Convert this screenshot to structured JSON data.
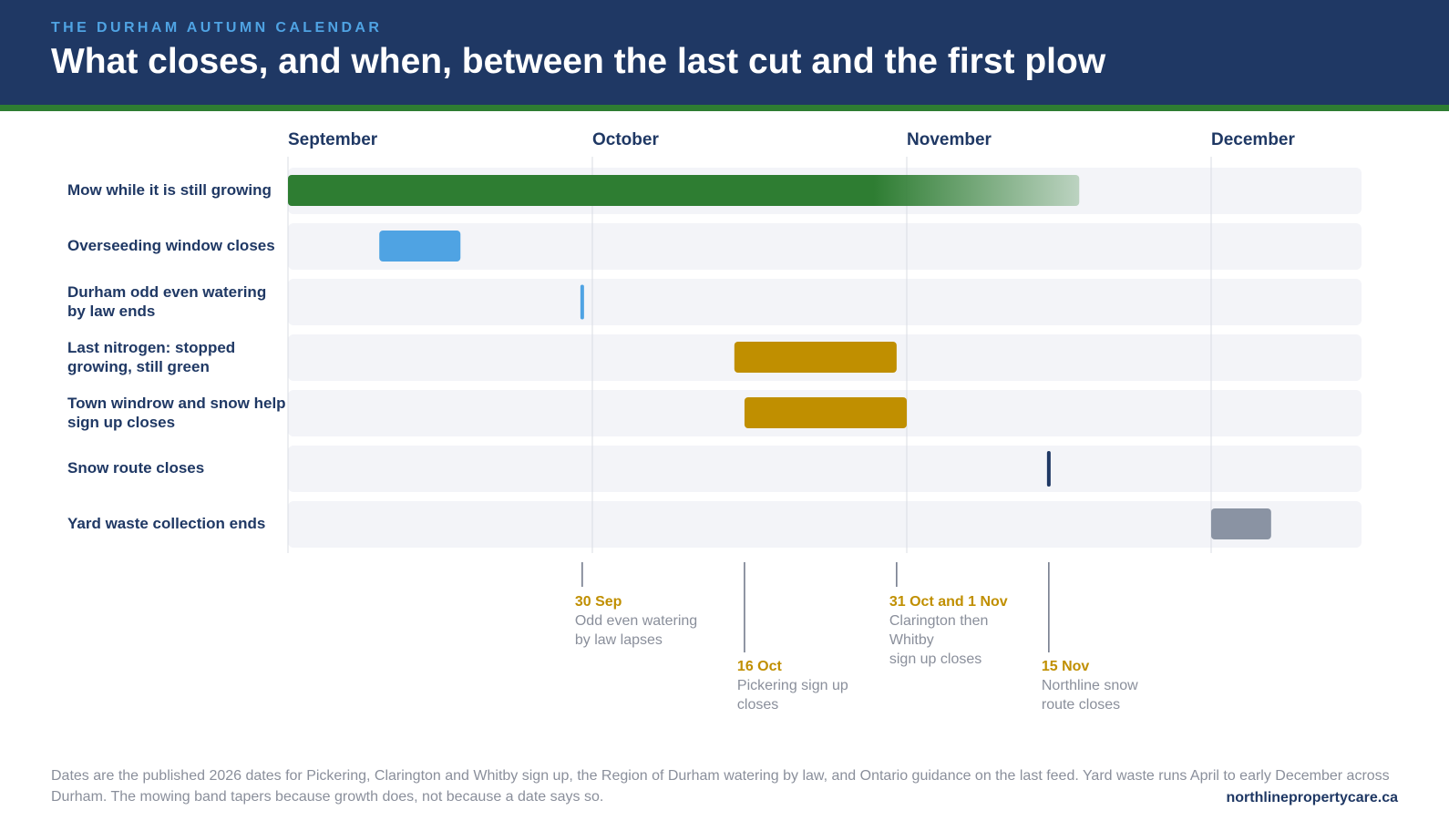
{
  "header": {
    "eyebrow": "THE DURHAM AUTUMN CALENDAR",
    "title": "What closes, and when, between the last cut and the first plow"
  },
  "colors": {
    "navy": "#1f3864",
    "green": "#2e7d32",
    "blue": "#4fa3e3",
    "gold": "#c08f00",
    "grey": "#8a93a3",
    "track": "#f3f4f8"
  },
  "chart_data": {
    "type": "gantt",
    "year": 2026,
    "months": [
      "September",
      "October",
      "November",
      "December"
    ],
    "x_range": [
      "2026-09-01",
      "2026-12-31"
    ],
    "rows": [
      {
        "label": "Mow while it is still growing",
        "start": "2026-09-01",
        "end": "2026-11-18",
        "color": "#2e7d32",
        "fade": true
      },
      {
        "label": "Overseeding window closes",
        "start": "2026-09-10",
        "end": "2026-09-18",
        "color": "#4fa3e3"
      },
      {
        "label": "Durham odd even watering by law ends",
        "start": "2026-09-30",
        "end": "2026-09-30",
        "color": "#4fa3e3",
        "marker": true
      },
      {
        "label": "Last nitrogen: stopped growing, still green",
        "start": "2026-10-15",
        "end": "2026-10-31",
        "color": "#c08f00"
      },
      {
        "label": "Town windrow and snow help sign up closes",
        "start": "2026-10-16",
        "end": "2026-11-01",
        "color": "#c08f00"
      },
      {
        "label": "Snow route closes",
        "start": "2026-11-15",
        "end": "2026-11-15",
        "color": "#1f3864",
        "marker": true
      },
      {
        "label": "Yard waste collection ends",
        "start": "2026-12-01",
        "end": "2026-12-07",
        "color": "#8a93a3"
      }
    ],
    "annotations": [
      {
        "date": "2026-09-30",
        "title": "30 Sep",
        "text": [
          "Odd even watering",
          "by law lapses"
        ],
        "tier": 1
      },
      {
        "date": "2026-10-16",
        "title": "16 Oct",
        "text": [
          "Pickering sign up",
          "closes"
        ],
        "tier": 2
      },
      {
        "date": "2026-10-31",
        "title": "31 Oct and 1 Nov",
        "text": [
          "Clarington then Whitby",
          "sign up closes"
        ],
        "tier": 1
      },
      {
        "date": "2026-11-15",
        "title": "15 Nov",
        "text": [
          "Northline snow",
          "route closes"
        ],
        "tier": 2
      }
    ]
  },
  "footnote": "Dates are the published 2026 dates for Pickering, Clarington and Whitby sign up, the Region of Durham watering by law, and Ontario guidance on the last feed. Yard waste runs April to early December across Durham. The mowing band tapers because growth does, not because a date says so.",
  "site": "northlinepropertycare.ca"
}
